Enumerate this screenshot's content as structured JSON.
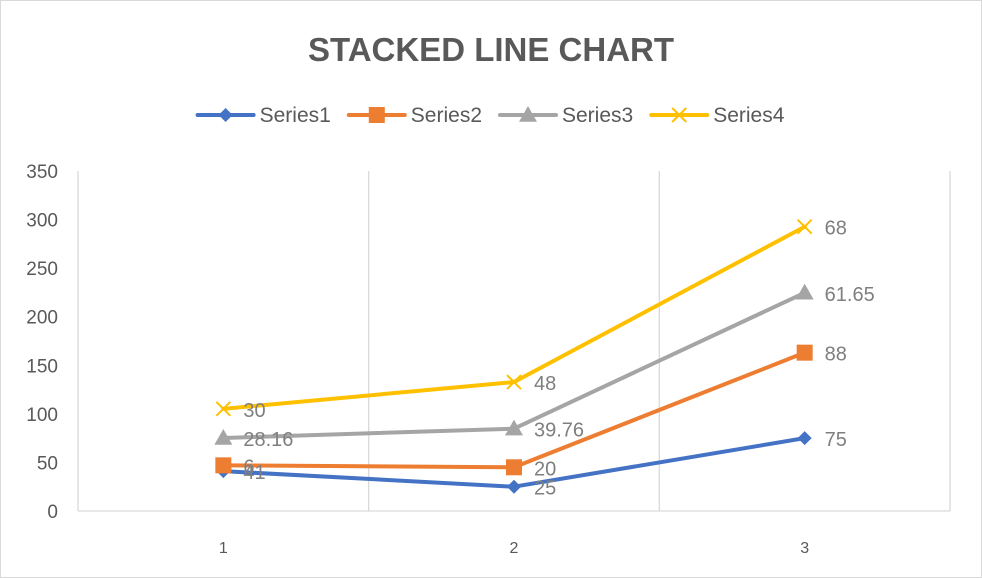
{
  "chart_data": {
    "type": "line",
    "stacked": true,
    "title": "STACKED LINE CHART",
    "xlabel": "",
    "ylabel": "",
    "x": [
      1,
      2,
      3
    ],
    "categories": [
      "1",
      "2",
      "3"
    ],
    "ylim": [
      0,
      350
    ],
    "yticks": [
      0,
      50,
      100,
      150,
      200,
      250,
      300,
      350
    ],
    "grid": "vertical",
    "legend_position": "top",
    "series": [
      {
        "name": "Series1",
        "values": [
          41,
          25,
          75
        ],
        "labels": [
          "41",
          "25",
          "75"
        ],
        "color": "#4472C4",
        "marker": "diamond"
      },
      {
        "name": "Series2",
        "values": [
          6,
          20,
          88
        ],
        "labels": [
          "6",
          "20",
          "88"
        ],
        "color": "#ED7D31",
        "marker": "square"
      },
      {
        "name": "Series3",
        "values": [
          28.16,
          39.76,
          61.65
        ],
        "labels": [
          "28.16",
          "39.76",
          "61.65"
        ],
        "color": "#A5A5A5",
        "marker": "triangle"
      },
      {
        "name": "Series4",
        "values": [
          30,
          48,
          68
        ],
        "labels": [
          "30",
          "48",
          "68"
        ],
        "color": "#FFC000",
        "marker": "x"
      }
    ]
  }
}
